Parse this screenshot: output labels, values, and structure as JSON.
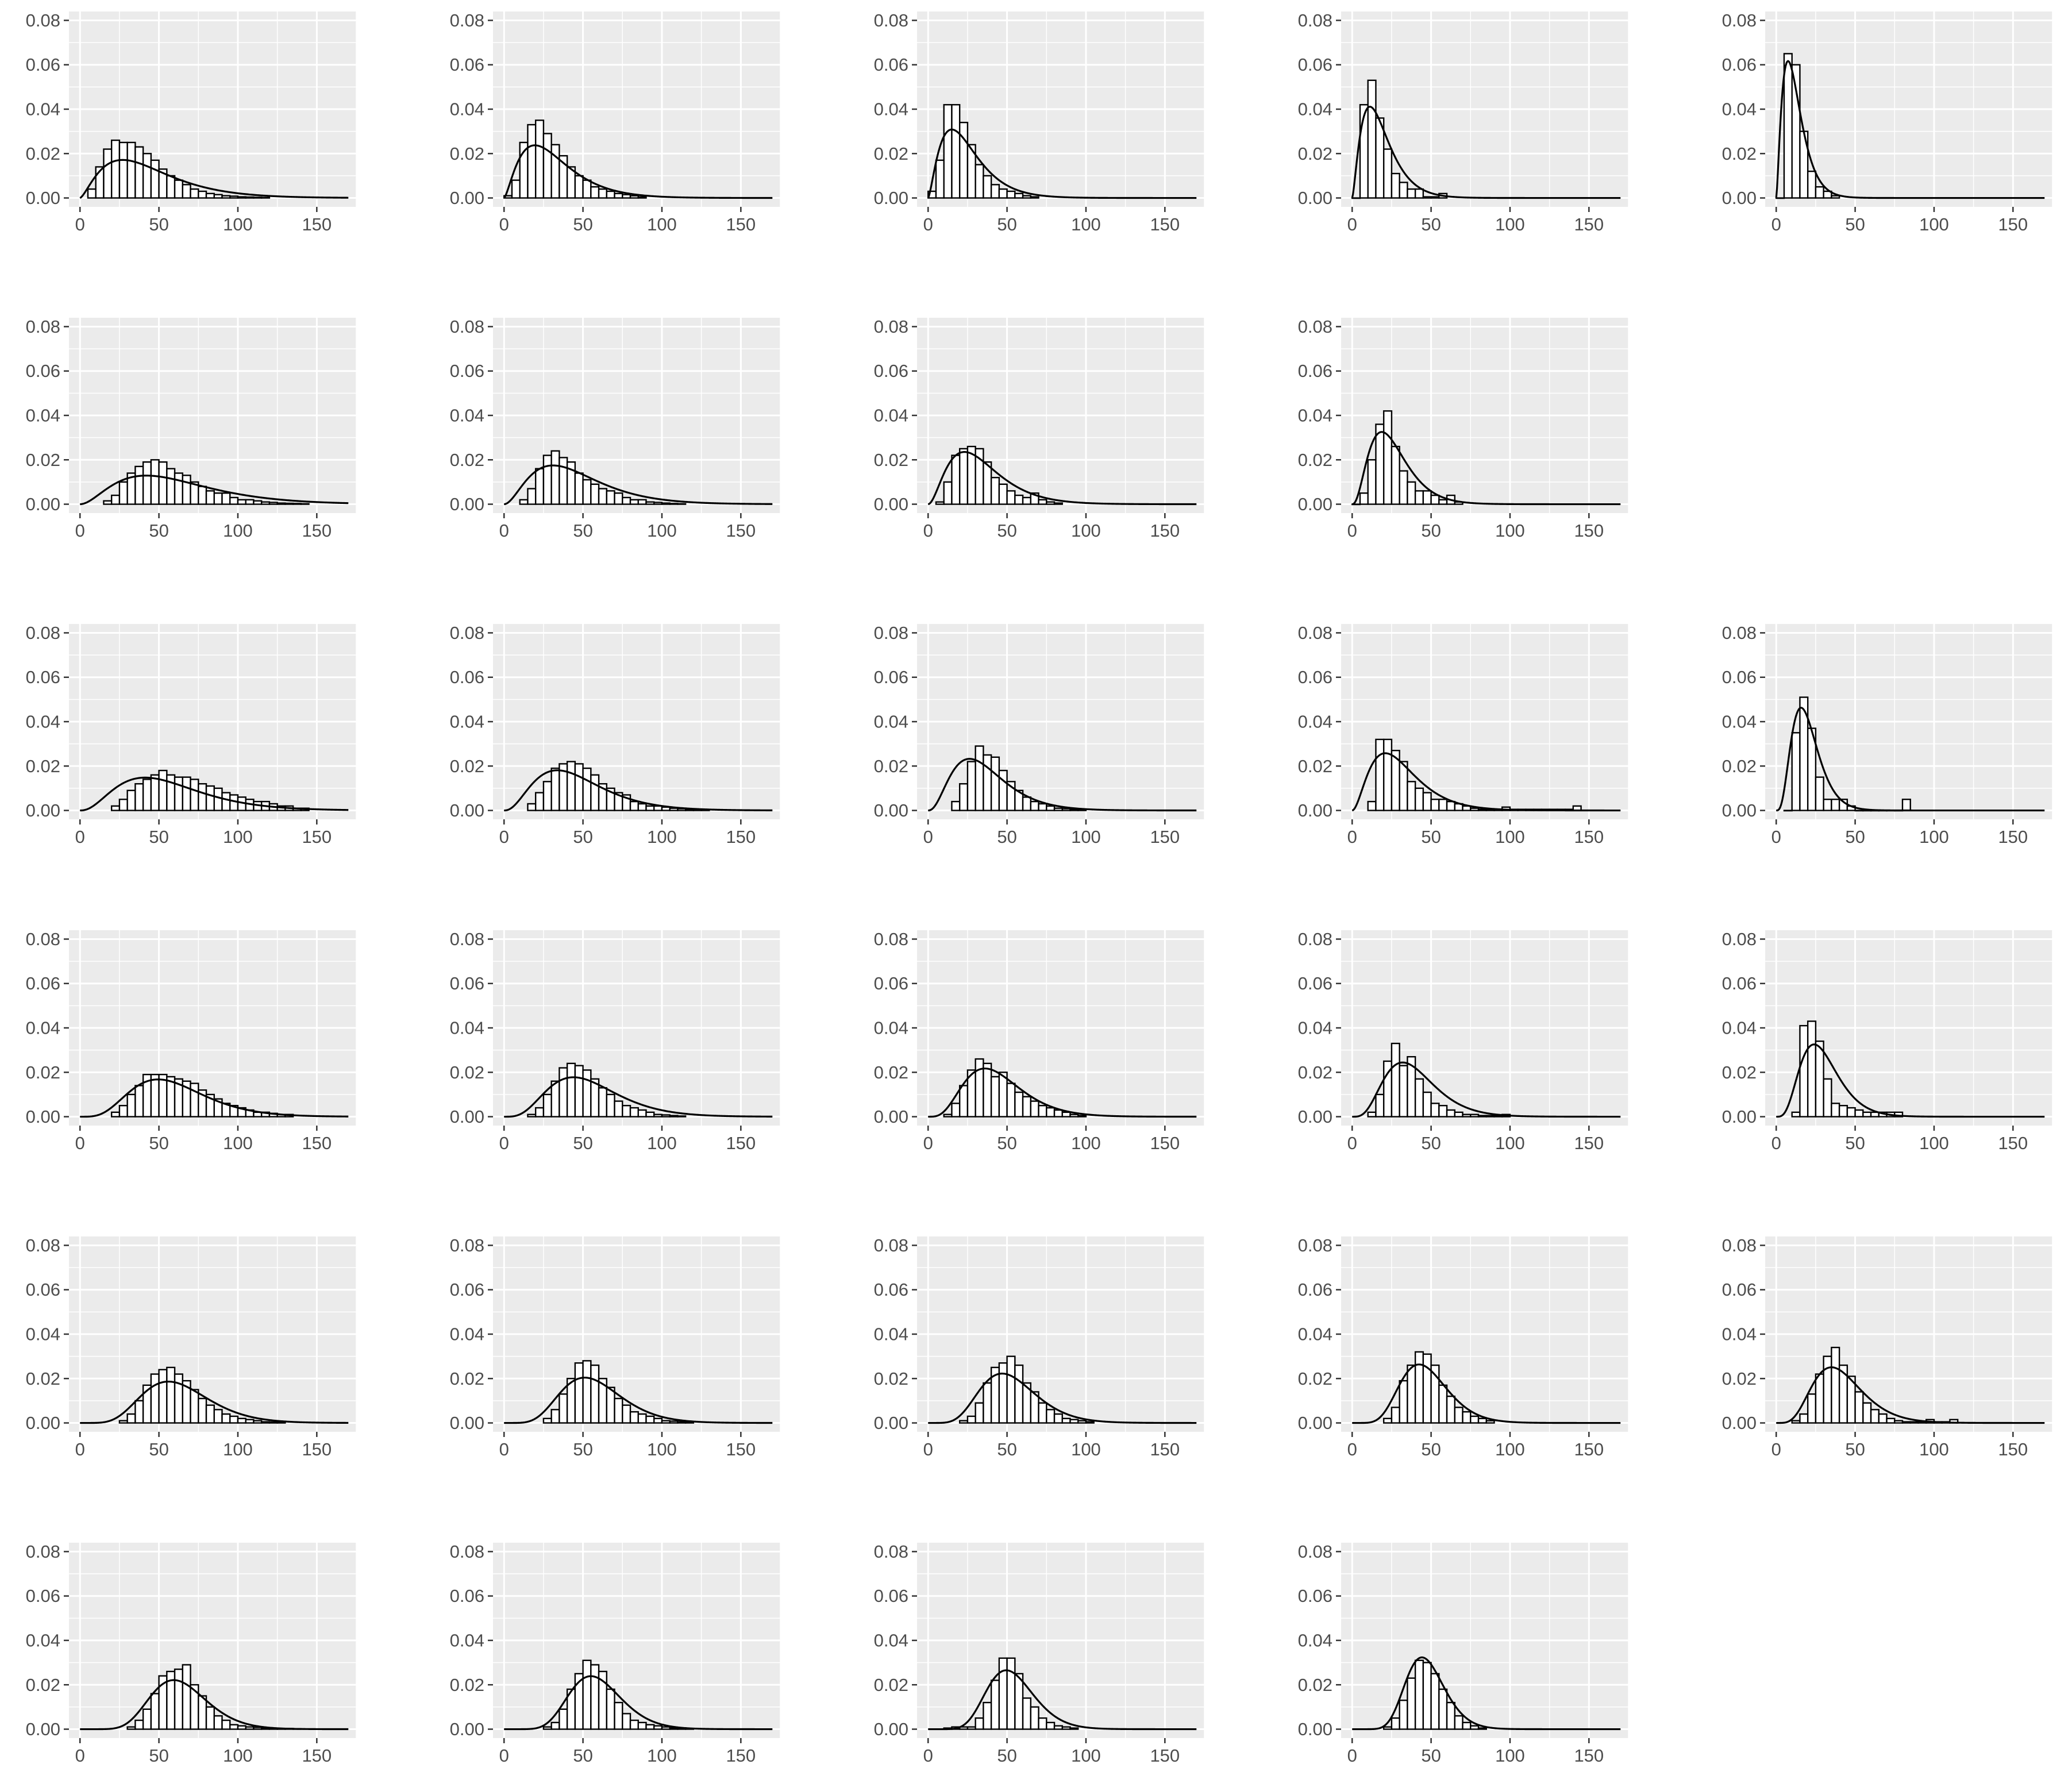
{
  "chart_data": {
    "type": "histogram-grid",
    "grid": {
      "rows": 6,
      "cols": 5,
      "empty_cells": [
        [
          1,
          4
        ],
        [
          5,
          4
        ]
      ]
    },
    "panel_background": "#EBEBEB",
    "gridline_color": "#FFFFFF",
    "bar_fill": "#FFFFFF",
    "bar_stroke": "#000000",
    "curve_color": "#000000",
    "axis_text_color": "#4D4D4D",
    "x_axis": {
      "range": [
        -7,
        175
      ],
      "ticks": [
        0,
        50,
        100,
        150
      ],
      "tick_labels": [
        "0",
        "50",
        "100",
        "150"
      ]
    },
    "y_axis": {
      "range": [
        -0.004,
        0.084
      ],
      "ticks": [
        0.0,
        0.02,
        0.04,
        0.06,
        0.08
      ],
      "tick_labels": [
        "0.00",
        "0.02",
        "0.04",
        "0.06",
        "0.08"
      ]
    },
    "bin_width": 5,
    "x_max": 170,
    "panels": [
      {
        "row": 0,
        "col": 0,
        "curve": {
          "shape": 2.5,
          "scale": 18
        },
        "bins_start": 5,
        "bars": [
          0.004,
          0.014,
          0.022,
          0.026,
          0.025,
          0.025,
          0.023,
          0.02,
          0.017,
          0.013,
          0.01,
          0.008,
          0.006,
          0.004,
          0.003,
          0.002,
          0.0015,
          0.001,
          0.0008,
          0.0005,
          0.0004,
          0.0003,
          0.0002
        ]
      },
      {
        "row": 0,
        "col": 1,
        "curve": {
          "shape": 2.5,
          "scale": 13
        },
        "bins_start": 0,
        "bars": [
          0.001,
          0.008,
          0.025,
          0.033,
          0.035,
          0.029,
          0.024,
          0.019,
          0.014,
          0.01,
          0.008,
          0.005,
          0.004,
          0.003,
          0.002,
          0.0015,
          0.001,
          0.0005
        ]
      },
      {
        "row": 0,
        "col": 2,
        "curve": {
          "shape": 2.5,
          "scale": 10
        },
        "bins_start": 0,
        "bars": [
          0.003,
          0.017,
          0.042,
          0.042,
          0.034,
          0.024,
          0.015,
          0.01,
          0.006,
          0.004,
          0.003,
          0.002,
          0.001,
          0.0005
        ]
      },
      {
        "row": 0,
        "col": 3,
        "curve": {
          "shape": 2.5,
          "scale": 7.5
        },
        "bins_start": 0,
        "bars": [
          0.0,
          0.042,
          0.053,
          0.036,
          0.022,
          0.011,
          0.007,
          0.004,
          0.004,
          0.0005,
          0.0005,
          0.002
        ]
      },
      {
        "row": 0,
        "col": 4,
        "curve": {
          "shape": 2.5,
          "scale": 5
        },
        "bins_start": 0,
        "bars": [
          0.0,
          0.065,
          0.06,
          0.03,
          0.012,
          0.005,
          0.003,
          0.001
        ]
      },
      {
        "row": 1,
        "col": 0,
        "curve": {
          "shape": 3,
          "scale": 21
        },
        "bins_start": 15,
        "bars": [
          0.0015,
          0.004,
          0.01,
          0.014,
          0.017,
          0.019,
          0.02,
          0.019,
          0.016,
          0.014,
          0.013,
          0.01,
          0.008,
          0.006,
          0.005,
          0.005,
          0.003,
          0.002,
          0.002,
          0.0015,
          0.001,
          0.0008,
          0.0005,
          0.0004,
          0.0003,
          0.0002
        ]
      },
      {
        "row": 1,
        "col": 1,
        "curve": {
          "shape": 3,
          "scale": 15.5
        },
        "bins_start": 10,
        "bars": [
          0.002,
          0.007,
          0.016,
          0.022,
          0.024,
          0.021,
          0.019,
          0.014,
          0.011,
          0.009,
          0.007,
          0.006,
          0.005,
          0.003,
          0.002,
          0.002,
          0.001,
          0.0008,
          0.0005,
          0.0003,
          0.0002
        ]
      },
      {
        "row": 1,
        "col": 2,
        "curve": {
          "shape": 3,
          "scale": 11.5
        },
        "bins_start": 5,
        "bars": [
          0.001,
          0.01,
          0.022,
          0.025,
          0.026,
          0.025,
          0.019,
          0.012,
          0.009,
          0.006,
          0.004,
          0.003,
          0.005,
          0.002,
          0.001,
          0.0005
        ]
      },
      {
        "row": 1,
        "col": 3,
        "curve": {
          "shape": 3.5,
          "scale": 7.5
        },
        "bins_start": 0,
        "bars": [
          0.0,
          0.005,
          0.02,
          0.036,
          0.042,
          0.026,
          0.015,
          0.01,
          0.006,
          0.006,
          0.004,
          0.002,
          0.004,
          0.001
        ]
      },
      {
        "row": 2,
        "col": 0,
        "curve": {
          "shape": 3.5,
          "scale": 16.5
        },
        "bins_start": 20,
        "bars": [
          0.002,
          0.005,
          0.009,
          0.012,
          0.014,
          0.016,
          0.018,
          0.016,
          0.015,
          0.015,
          0.014,
          0.012,
          0.011,
          0.01,
          0.008,
          0.007,
          0.006,
          0.005,
          0.004,
          0.004,
          0.003,
          0.002,
          0.002,
          0.001,
          0.001
        ]
      },
      {
        "row": 2,
        "col": 1,
        "curve": {
          "shape": 3.5,
          "scale": 13.5
        },
        "bins_start": 15,
        "bars": [
          0.003,
          0.008,
          0.013,
          0.019,
          0.021,
          0.022,
          0.021,
          0.019,
          0.016,
          0.012,
          0.01,
          0.008,
          0.007,
          0.004,
          0.003,
          0.002,
          0.002,
          0.0015,
          0.001,
          0.0008,
          0.0006,
          0.0004,
          0.0003
        ]
      },
      {
        "row": 2,
        "col": 2,
        "curve": {
          "shape": 3.5,
          "scale": 10.5
        },
        "bins_start": 15,
        "bars": [
          0.004,
          0.012,
          0.022,
          0.029,
          0.025,
          0.024,
          0.018,
          0.013,
          0.009,
          0.006,
          0.004,
          0.003,
          0.002,
          0.001,
          0.0008,
          0.0005,
          0.0003
        ]
      },
      {
        "row": 2,
        "col": 3,
        "curve": {
          "shape": 3,
          "scale": 10.5
        },
        "bins_start": 10,
        "bars": [
          0.004,
          0.032,
          0.032,
          0.027,
          0.022,
          0.013,
          0.01,
          0.008,
          0.005,
          0.005,
          0.004,
          0.003,
          0.002,
          0.001,
          0.0005,
          0.0005,
          0.0005,
          0.0015,
          0.0005,
          0.0005,
          0.0005,
          0.0005,
          0.0005,
          0.0005,
          0.0005,
          0.0005,
          0.002
        ]
      },
      {
        "row": 2,
        "col": 4,
        "curve": {
          "shape": 4.5,
          "scale": 4.5
        },
        "bins_start": 5,
        "bars": [
          0.0,
          0.035,
          0.051,
          0.037,
          0.015,
          0.005,
          0.005,
          0.005,
          0.002,
          0.0,
          0.0,
          0.0,
          0.0,
          0.0,
          0.0,
          0.005
        ]
      },
      {
        "row": 3,
        "col": 0,
        "curve": {
          "shape": 5.5,
          "scale": 11
        },
        "bins_start": 20,
        "bars": [
          0.002,
          0.005,
          0.01,
          0.014,
          0.019,
          0.019,
          0.019,
          0.018,
          0.017,
          0.016,
          0.015,
          0.012,
          0.01,
          0.008,
          0.006,
          0.005,
          0.004,
          0.003,
          0.002,
          0.002,
          0.0015,
          0.001,
          0.001
        ]
      },
      {
        "row": 3,
        "col": 1,
        "curve": {
          "shape": 5,
          "scale": 11
        },
        "bins_start": 15,
        "bars": [
          0.001,
          0.004,
          0.01,
          0.016,
          0.022,
          0.024,
          0.023,
          0.021,
          0.017,
          0.013,
          0.01,
          0.007,
          0.005,
          0.004,
          0.003,
          0.002,
          0.001,
          0.0008,
          0.0005,
          0.0003
        ]
      },
      {
        "row": 3,
        "col": 2,
        "curve": {
          "shape": 5,
          "scale": 9
        },
        "bins_start": 10,
        "bars": [
          0.001,
          0.006,
          0.014,
          0.021,
          0.026,
          0.024,
          0.018,
          0.02,
          0.015,
          0.011,
          0.009,
          0.007,
          0.005,
          0.004,
          0.003,
          0.002,
          0.001,
          0.0005
        ]
      },
      {
        "row": 3,
        "col": 3,
        "curve": {
          "shape": 5,
          "scale": 8
        },
        "bins_start": 10,
        "bars": [
          0.002,
          0.01,
          0.025,
          0.033,
          0.023,
          0.027,
          0.017,
          0.011,
          0.006,
          0.005,
          0.003,
          0.002,
          0.001,
          0.001,
          0.0005,
          0.0005,
          0.0005,
          0.001
        ]
      },
      {
        "row": 3,
        "col": 4,
        "curve": {
          "shape": 5,
          "scale": 6
        },
        "bins_start": 10,
        "bars": [
          0.002,
          0.041,
          0.043,
          0.034,
          0.017,
          0.006,
          0.005,
          0.004,
          0.003,
          0.002,
          0.002,
          0.002,
          0.002,
          0.002
        ]
      },
      {
        "row": 4,
        "col": 0,
        "curve": {
          "shape": 8,
          "scale": 8
        },
        "bins_start": 25,
        "bars": [
          0.001,
          0.004,
          0.01,
          0.017,
          0.022,
          0.024,
          0.025,
          0.022,
          0.019,
          0.015,
          0.011,
          0.008,
          0.006,
          0.004,
          0.003,
          0.002,
          0.0015,
          0.001,
          0.0005,
          0.0004,
          0.0003
        ]
      },
      {
        "row": 4,
        "col": 1,
        "curve": {
          "shape": 8,
          "scale": 7.3
        },
        "bins_start": 25,
        "bars": [
          0.002,
          0.006,
          0.013,
          0.02,
          0.027,
          0.028,
          0.026,
          0.02,
          0.016,
          0.011,
          0.008,
          0.005,
          0.004,
          0.003,
          0.002,
          0.001,
          0.0008,
          0.0005,
          0.0003
        ]
      },
      {
        "row": 4,
        "col": 2,
        "curve": {
          "shape": 8,
          "scale": 6.7
        },
        "bins_start": 20,
        "bars": [
          0.001,
          0.003,
          0.009,
          0.018,
          0.025,
          0.027,
          0.03,
          0.026,
          0.018,
          0.014,
          0.009,
          0.006,
          0.004,
          0.002,
          0.0015,
          0.001,
          0.0005
        ]
      },
      {
        "row": 4,
        "col": 3,
        "curve": {
          "shape": 9,
          "scale": 5.3
        },
        "bins_start": 20,
        "bars": [
          0.002,
          0.007,
          0.019,
          0.026,
          0.032,
          0.031,
          0.026,
          0.017,
          0.012,
          0.007,
          0.005,
          0.003,
          0.002,
          0.001
        ]
      },
      {
        "row": 4,
        "col": 4,
        "curve": {
          "shape": 6,
          "scale": 7
        },
        "bins_start": 10,
        "bars": [
          0.001,
          0.004,
          0.013,
          0.022,
          0.03,
          0.034,
          0.026,
          0.021,
          0.014,
          0.009,
          0.006,
          0.004,
          0.002,
          0.001,
          0.0005,
          0.0005,
          0.0005,
          0.0015,
          0.0005,
          0.0005,
          0.0015
        ]
      },
      {
        "row": 5,
        "col": 0,
        "curve": {
          "shape": 12,
          "scale": 5.4
        },
        "bins_start": 30,
        "bars": [
          0.001,
          0.004,
          0.009,
          0.016,
          0.024,
          0.026,
          0.027,
          0.029,
          0.02,
          0.015,
          0.01,
          0.006,
          0.004,
          0.002,
          0.0015,
          0.001,
          0.0008,
          0.0005,
          0.0004,
          0.0003,
          0.0003,
          0.0002
        ]
      },
      {
        "row": 5,
        "col": 1,
        "curve": {
          "shape": 12,
          "scale": 5
        },
        "bins_start": 25,
        "bars": [
          0.001,
          0.003,
          0.009,
          0.018,
          0.025,
          0.031,
          0.029,
          0.026,
          0.018,
          0.012,
          0.007,
          0.004,
          0.003,
          0.002,
          0.0015,
          0.001,
          0.0005,
          0.0004,
          0.0003
        ]
      },
      {
        "row": 5,
        "col": 2,
        "curve": {
          "shape": 12,
          "scale": 4.5
        },
        "bins_start": 10,
        "bars": [
          0.0005,
          0.001,
          0.001,
          0.001,
          0.005,
          0.012,
          0.022,
          0.032,
          0.032,
          0.025,
          0.014,
          0.01,
          0.005,
          0.003,
          0.0015,
          0.001,
          0.0005
        ]
      },
      {
        "row": 5,
        "col": 3,
        "curve": {
          "shape": 14,
          "scale": 3.4
        },
        "bins_start": 20,
        "bars": [
          0.001,
          0.005,
          0.013,
          0.023,
          0.031,
          0.03,
          0.025,
          0.018,
          0.012,
          0.006,
          0.003,
          0.0015,
          0.0005
        ]
      }
    ]
  }
}
